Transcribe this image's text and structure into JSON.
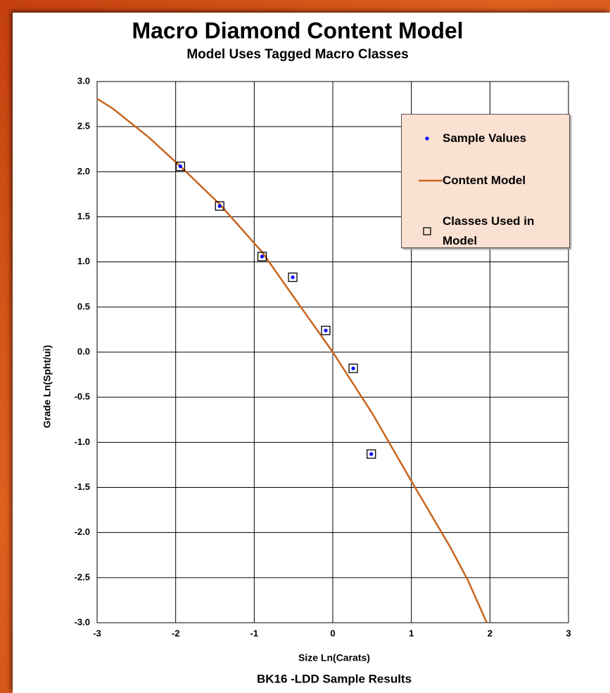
{
  "chart_data": {
    "type": "scatter",
    "title": "Macro Diamond Content Model",
    "subtitle": "Model Uses Tagged Macro Classes",
    "xlabel": "Size Ln(Carats)",
    "ylabel": "Grade Ln(Spht/ui)",
    "caption": "BK16 -LDD Sample Results",
    "xlim": [
      -3,
      3
    ],
    "ylim": [
      -3,
      3
    ],
    "xticks": [
      -3,
      -2,
      -1,
      0,
      1,
      2,
      3
    ],
    "yticks": [
      {
        "value": 3,
        "label": "3.0"
      },
      {
        "value": 2.5,
        "label": "2.5"
      },
      {
        "value": 2,
        "label": "2.0"
      },
      {
        "value": 1.5,
        "label": "1.5"
      },
      {
        "value": 1,
        "label": "1.0"
      },
      {
        "value": 0.5,
        "label": "0.5"
      },
      {
        "value": 0,
        "label": "0.0"
      },
      {
        "value": -0.5,
        "label": "-0.5"
      },
      {
        "value": -1,
        "label": "-1.0"
      },
      {
        "value": -1.5,
        "label": "-1.5"
      },
      {
        "value": -2,
        "label": "-2.0"
      },
      {
        "value": -2.5,
        "label": "-2.5"
      },
      {
        "value": -3,
        "label": "-3.0"
      }
    ],
    "grid": true,
    "legend": "upper right",
    "series": [
      {
        "name": "Sample Values",
        "marker": "dot",
        "color": "#0000ff",
        "x": [
          -1.94,
          -1.44,
          -0.9,
          -0.51,
          -0.09,
          0.26,
          0.49
        ],
        "values": [
          2.06,
          1.62,
          1.06,
          0.83,
          0.24,
          -0.18,
          -1.13
        ]
      },
      {
        "name": "Content Model",
        "marker": "line",
        "color": "#c8651e",
        "x": [
          -3,
          -2.8,
          -2.34,
          -1.94,
          -1.44,
          -0.9,
          -0.48,
          0,
          0.51,
          1.0,
          1.5,
          1.72,
          1.96
        ],
        "values": [
          2.81,
          2.7,
          2.38,
          2.06,
          1.64,
          1.11,
          0.59,
          0,
          -0.69,
          -1.43,
          -2.17,
          -2.53,
          -3.0
        ]
      },
      {
        "name": "Classes Used in Model",
        "marker": "square",
        "color": "#000000",
        "x": [
          -1.94,
          -1.44,
          -0.9,
          -0.51,
          -0.09,
          0.26,
          0.49
        ],
        "values": [
          2.06,
          1.62,
          1.06,
          0.83,
          0.24,
          -0.18,
          -1.13
        ]
      }
    ]
  }
}
